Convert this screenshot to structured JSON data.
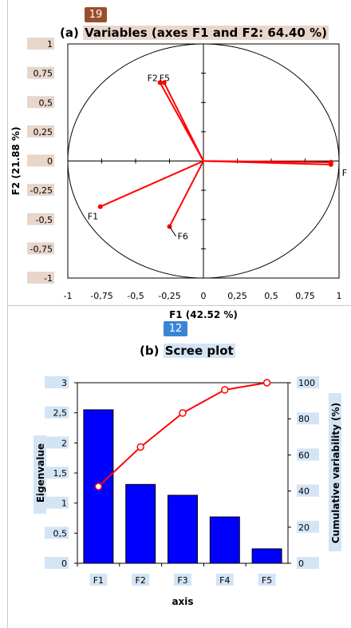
{
  "badges": {
    "top": "19",
    "bottom": "12"
  },
  "chart_data": [
    {
      "type": "scatter",
      "panel": "(a)",
      "title": "Variables (axes F1 and F2: 64.40 %)",
      "xlabel": "F1 (42.52 %)",
      "ylabel": "F2 (21.88 %)",
      "xlim": [
        -1,
        1
      ],
      "ylim": [
        -1,
        1
      ],
      "xticks": [
        "-1",
        "-0,75",
        "-0,5",
        "-0,25",
        "0",
        "0,25",
        "0,5",
        "0,75",
        "1"
      ],
      "yticks": [
        "1",
        "0,75",
        "0,5",
        "0,25",
        "0",
        "-0,25",
        "-0,5",
        "-0,75",
        "-1"
      ],
      "grid": false,
      "vectors": [
        {
          "label": "F1",
          "x": -0.76,
          "y": -0.39
        },
        {
          "label": "F6",
          "x": -0.25,
          "y": -0.56
        },
        {
          "label": "F2",
          "x": -0.32,
          "y": 0.67
        },
        {
          "label": "F5",
          "x": -0.29,
          "y": 0.67
        },
        {
          "label": "F",
          "x": 0.94,
          "y": -0.01
        },
        {
          "label": "",
          "x": 0.94,
          "y": -0.03
        }
      ]
    },
    {
      "type": "bar",
      "panel": "(b)",
      "title": "Scree plot",
      "xlabel": "axis",
      "ylabel": "Eigenvalue",
      "y2label": "Cumulative variability (%)",
      "categories": [
        "F1",
        "F2",
        "F3",
        "F4",
        "F5"
      ],
      "series": [
        {
          "values": [
            2.55,
            1.31,
            1.13,
            0.77,
            0.24
          ],
          "axis": "left",
          "kind": "bar",
          "color": "#0000ff"
        },
        {
          "values": [
            42.52,
            64.4,
            83.23,
            96.06,
            100.0
          ],
          "axis": "right",
          "kind": "line",
          "color": "#ff0000"
        }
      ],
      "ylim": [
        0,
        3
      ],
      "y2lim": [
        0,
        100
      ],
      "yticks": [
        "0",
        "0,5",
        "1",
        "1,5",
        "2",
        "2,5",
        "3"
      ],
      "y2ticks": [
        "0",
        "20",
        "40",
        "60",
        "80",
        "100"
      ],
      "grid": false
    }
  ]
}
